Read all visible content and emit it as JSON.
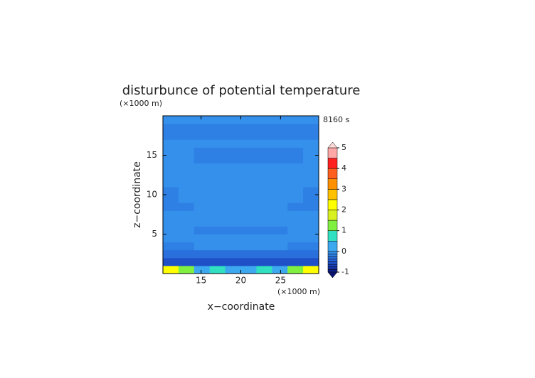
{
  "chart_data": {
    "type": "contour",
    "title": "disturbunce of potential temperature",
    "time_label": "8160 s",
    "x_label": "x−coordinate",
    "y_label": "z−coordinate",
    "x_unit": "(×1000 m)",
    "y_unit": "(×1000 m)",
    "xlim": [
      10.2,
      29.8
    ],
    "ylim": [
      0,
      20
    ],
    "xticks": [
      15,
      20,
      25
    ],
    "yticks": [
      5,
      10,
      15
    ],
    "x": [
      11.18,
      13.14,
      15.1,
      17.06,
      19.02,
      20.98,
      22.94,
      24.9,
      26.86,
      28.82
    ],
    "y": [
      0.5,
      1.5,
      2.5,
      3.5,
      4.5,
      5.5,
      6.5,
      7.5,
      8.5,
      9.5,
      10.5,
      11.5,
      12.5,
      13.5,
      14.5,
      15.5,
      16.5,
      17.5,
      18.5,
      19.5
    ],
    "z": [
      [
        2.2,
        1.2,
        0.3,
        0.7,
        0.2,
        0.2,
        0.7,
        0.3,
        1.2,
        2.2
      ],
      [
        -0.6,
        -0.6,
        -0.6,
        -0.6,
        -0.6,
        -0.6,
        -0.6,
        -0.6,
        -0.6,
        -0.6
      ],
      [
        -0.3,
        -0.3,
        -0.3,
        -0.3,
        -0.3,
        -0.3,
        -0.3,
        -0.3,
        -0.3,
        -0.3
      ],
      [
        -0.2,
        -0.2,
        -0.07,
        -0.07,
        -0.07,
        -0.07,
        -0.07,
        -0.07,
        -0.2,
        -0.2
      ],
      [
        -0.07,
        -0.07,
        -0.07,
        -0.07,
        -0.07,
        -0.07,
        -0.07,
        -0.07,
        -0.07,
        -0.07
      ],
      [
        -0.07,
        -0.07,
        -0.2,
        -0.2,
        -0.2,
        -0.2,
        -0.2,
        -0.2,
        -0.07,
        -0.07
      ],
      [
        -0.07,
        -0.07,
        -0.07,
        -0.07,
        -0.07,
        -0.07,
        -0.07,
        -0.07,
        -0.07,
        -0.07
      ],
      [
        -0.07,
        -0.07,
        -0.07,
        -0.07,
        -0.07,
        -0.07,
        -0.07,
        -0.07,
        -0.07,
        -0.07
      ],
      [
        -0.2,
        -0.2,
        -0.07,
        -0.07,
        -0.07,
        -0.07,
        -0.07,
        -0.07,
        -0.2,
        -0.2
      ],
      [
        -0.2,
        -0.07,
        -0.07,
        -0.07,
        -0.07,
        -0.07,
        -0.07,
        -0.07,
        -0.07,
        -0.2
      ],
      [
        -0.2,
        -0.07,
        -0.07,
        -0.07,
        -0.07,
        -0.07,
        -0.07,
        -0.07,
        -0.07,
        -0.2
      ],
      [
        -0.07,
        -0.07,
        -0.07,
        -0.07,
        -0.07,
        -0.07,
        -0.07,
        -0.07,
        -0.07,
        -0.07
      ],
      [
        -0.07,
        -0.07,
        -0.07,
        -0.07,
        -0.07,
        -0.07,
        -0.07,
        -0.07,
        -0.07,
        -0.07
      ],
      [
        -0.07,
        -0.07,
        -0.07,
        -0.07,
        -0.07,
        -0.07,
        -0.07,
        -0.07,
        -0.07,
        -0.07
      ],
      [
        -0.07,
        -0.07,
        -0.2,
        -0.2,
        -0.2,
        -0.2,
        -0.2,
        -0.2,
        -0.2,
        -0.07
      ],
      [
        -0.07,
        -0.07,
        -0.2,
        -0.2,
        -0.2,
        -0.2,
        -0.2,
        -0.2,
        -0.2,
        -0.07
      ],
      [
        -0.07,
        -0.07,
        -0.07,
        -0.07,
        -0.07,
        -0.07,
        -0.07,
        -0.07,
        -0.07,
        -0.07
      ],
      [
        -0.2,
        -0.2,
        -0.2,
        -0.2,
        -0.2,
        -0.2,
        -0.2,
        -0.2,
        -0.2,
        -0.2
      ],
      [
        -0.2,
        -0.2,
        -0.2,
        -0.2,
        -0.2,
        -0.2,
        -0.2,
        -0.2,
        -0.2,
        -0.2
      ],
      [
        -0.07,
        -0.07,
        -0.07,
        -0.07,
        -0.07,
        -0.07,
        -0.07,
        -0.07,
        -0.07,
        -0.07
      ]
    ],
    "levels": [
      -1,
      -0.875,
      -0.75,
      -0.625,
      -0.5,
      -0.375,
      -0.25,
      -0.125,
      0,
      0.5,
      1,
      1.5,
      2,
      2.5,
      3,
      3.5,
      4,
      4.5,
      5
    ],
    "colors": [
      "#10208a",
      "#1530a0",
      "#1a40b8",
      "#1f50c8",
      "#2460d4",
      "#2a70dc",
      "#2f80e4",
      "#3590ec",
      "#3ca8f0",
      "#30e0c0",
      "#80f040",
      "#d8f020",
      "#ffff00",
      "#ffc000",
      "#ff9000",
      "#ff6020",
      "#ff2020",
      "#ffa8a8"
    ],
    "under_color": "#0a1470",
    "over_color": "#ffd8d8",
    "colorbar_ticks": [
      -1,
      0,
      1,
      2,
      3,
      4,
      5
    ]
  }
}
